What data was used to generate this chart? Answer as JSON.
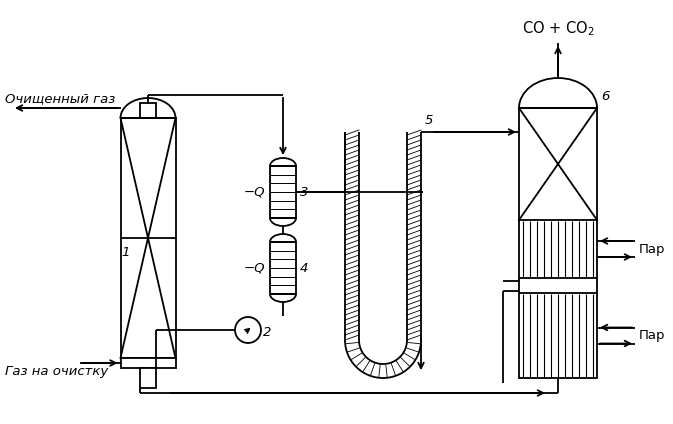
{
  "bg_color": "#ffffff",
  "line_color": "#000000",
  "labels": {
    "cleaned_gas": "Очищенный газ",
    "inlet_gas": "Газ на очистку",
    "co_co2": "CO + CO₂",
    "par1": "Пар",
    "par2": "Пар",
    "num1": "1",
    "num2": "2",
    "num3": "3",
    "num4": "4",
    "num5": "5",
    "num6": "6",
    "neg_q1": "−Q",
    "neg_q2": "−Q"
  },
  "figsize": [
    6.73,
    4.24
  ],
  "dpi": 100
}
